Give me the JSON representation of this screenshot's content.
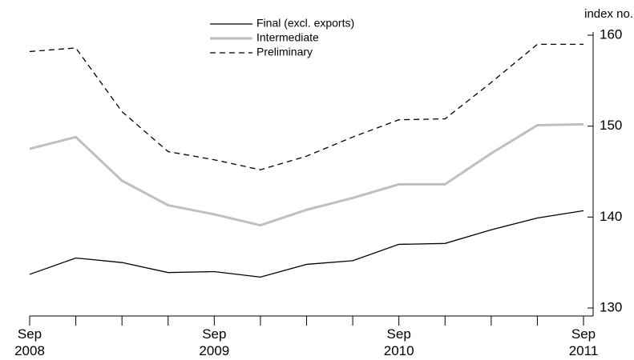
{
  "chart_data": {
    "type": "line",
    "y_label": "index no.",
    "categories": [
      "Sep 2008",
      null,
      null,
      null,
      "Sep 2009",
      null,
      null,
      null,
      "Sep 2010",
      null,
      null,
      null,
      "Sep 2011"
    ],
    "series": [
      {
        "name": "Final (excl. exports)",
        "color": "#000000",
        "style": "solid",
        "values": [
          133.7,
          135.5,
          135.0,
          133.9,
          134.0,
          133.4,
          134.8,
          135.2,
          137.0,
          137.1,
          138.6,
          139.9,
          140.7
        ]
      },
      {
        "name": "Intermediate",
        "color": "#bfbfbf",
        "style": "solid",
        "values": [
          147.5,
          148.8,
          144.0,
          141.3,
          140.3,
          139.1,
          140.8,
          142.1,
          143.6,
          143.6,
          147.0,
          150.1,
          150.2
        ]
      },
      {
        "name": "Preliminary",
        "color": "#000000",
        "style": "dashed",
        "values": [
          158.2,
          158.6,
          151.6,
          147.2,
          146.3,
          145.2,
          146.7,
          148.8,
          150.7,
          150.8,
          154.8,
          159.0,
          159.0
        ]
      }
    ],
    "ylim": [
      130,
      160
    ],
    "yticks": [
      130,
      140,
      150,
      160
    ],
    "y_axis_side": "right"
  }
}
